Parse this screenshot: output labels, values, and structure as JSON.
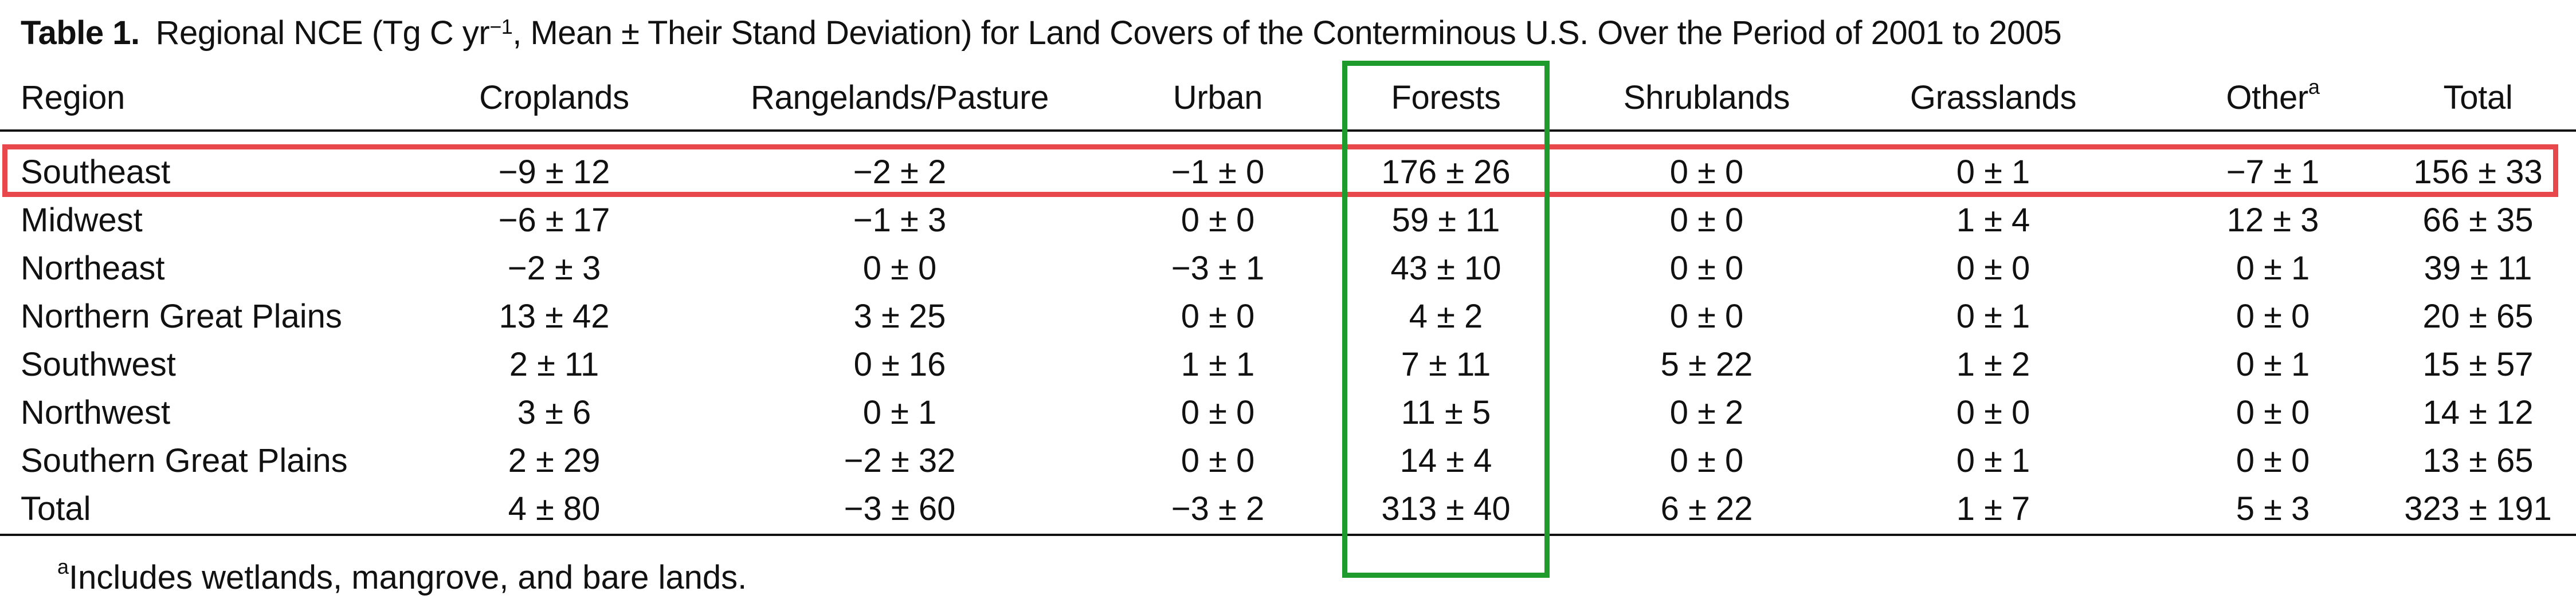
{
  "caption": {
    "label": "Table 1.",
    "text_before_sup": "Regional NCE (Tg C yr",
    "sup": "−1",
    "text_after_sup": ", Mean ± Their Stand Deviation) for Land Covers of the Conterminous U.S. Over the Period of 2001 to 2005"
  },
  "header": {
    "region": "Region",
    "croplands": "Croplands",
    "rangelands": "Rangelands/Pasture",
    "urban": "Urban",
    "forests": "Forests",
    "shrublands": "Shrublands",
    "grasslands": "Grasslands",
    "other": "Other",
    "other_sup": "a",
    "total": "Total"
  },
  "rows": [
    {
      "region": "Southeast",
      "croplands": "−9 ± 12",
      "rangelands": "−2 ± 2",
      "urban": "−1 ± 0",
      "forests": "176 ± 26",
      "shrublands": "0 ± 0",
      "grasslands": "0 ± 1",
      "other": "−7 ± 1",
      "total": "156 ± 33"
    },
    {
      "region": "Midwest",
      "croplands": "−6 ± 17",
      "rangelands": "−1 ± 3",
      "urban": "0 ± 0",
      "forests": "59 ± 11",
      "shrublands": "0 ± 0",
      "grasslands": "1 ± 4",
      "other": "12 ± 3",
      "total": "66 ± 35"
    },
    {
      "region": "Northeast",
      "croplands": "−2 ± 3",
      "rangelands": "0 ± 0",
      "urban": "−3 ± 1",
      "forests": "43 ± 10",
      "shrublands": "0 ± 0",
      "grasslands": "0 ± 0",
      "other": "0 ± 1",
      "total": "39 ± 11"
    },
    {
      "region": "Northern Great Plains",
      "croplands": "13 ± 42",
      "rangelands": "3 ± 25",
      "urban": "0 ± 0",
      "forests": "4 ± 2",
      "shrublands": "0 ± 0",
      "grasslands": "0 ± 1",
      "other": "0 ± 0",
      "total": "20 ± 65"
    },
    {
      "region": "Southwest",
      "croplands": "2 ± 11",
      "rangelands": "0 ± 16",
      "urban": "1 ± 1",
      "forests": "7 ± 11",
      "shrublands": "5 ± 22",
      "grasslands": "1 ± 2",
      "other": "0 ± 1",
      "total": "15 ± 57"
    },
    {
      "region": "Northwest",
      "croplands": "3 ± 6",
      "rangelands": "0 ± 1",
      "urban": "0 ± 0",
      "forests": "11 ± 5",
      "shrublands": "0 ± 2",
      "grasslands": "0 ± 0",
      "other": "0 ± 0",
      "total": "14 ± 12"
    },
    {
      "region": "Southern Great Plains",
      "croplands": "2 ± 29",
      "rangelands": "−2 ± 32",
      "urban": "0 ± 0",
      "forests": "14 ± 4",
      "shrublands": "0 ± 0",
      "grasslands": "0 ± 1",
      "other": "0 ± 0",
      "total": "13 ± 65"
    },
    {
      "region": "Total",
      "croplands": "4 ± 80",
      "rangelands": "−3 ± 60",
      "urban": "−3 ± 2",
      "forests": "313 ± 40",
      "shrublands": "6 ± 22",
      "grasslands": "1 ± 7",
      "other": "5 ± 3",
      "total": "323 ± 191"
    }
  ],
  "footnote": {
    "sup": "a",
    "text": "Includes wetlands, mangrove, and bare lands."
  },
  "highlights": {
    "row_color": "#e8474c",
    "column_color": "#1f9a2c"
  }
}
